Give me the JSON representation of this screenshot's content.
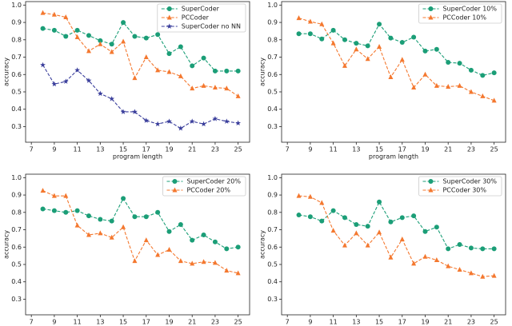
{
  "chart_data": [
    {
      "type": "line",
      "xlabel": "program length",
      "ylabel": "accuracy",
      "x": [
        8,
        9,
        10,
        11,
        12,
        13,
        14,
        15,
        16,
        17,
        18,
        19,
        20,
        21,
        22,
        23,
        24,
        25
      ],
      "xlim": [
        6.5,
        26
      ],
      "xticks": [
        7,
        9,
        11,
        13,
        15,
        17,
        19,
        21,
        23,
        25
      ],
      "ylim": [
        0.21,
        1.02
      ],
      "yticks": [
        0.3,
        0.4,
        0.5,
        0.6,
        0.7,
        0.8,
        0.9,
        {
          "value": 1.0,
          "label": "1.0"
        }
      ],
      "legend": "upper right",
      "series": [
        {
          "name": "SuperCoder",
          "color": "#1b9e77",
          "marker": "circle",
          "values": [
            0.865,
            0.855,
            0.82,
            0.855,
            0.825,
            0.795,
            0.775,
            0.9,
            0.82,
            0.81,
            0.83,
            0.72,
            0.76,
            0.65,
            0.695,
            0.62,
            0.62,
            0.62
          ]
        },
        {
          "name": "PCCoder",
          "color": "#f4782f",
          "marker": "triangle",
          "values": [
            0.955,
            0.945,
            0.93,
            0.815,
            0.735,
            0.775,
            0.73,
            0.79,
            0.58,
            0.7,
            0.625,
            0.615,
            0.59,
            0.52,
            0.535,
            0.525,
            0.52,
            0.475
          ]
        },
        {
          "name": "SuperCoder no NN",
          "color": "#3b3f9c",
          "marker": "star",
          "values": [
            0.655,
            0.545,
            0.56,
            0.625,
            0.565,
            0.49,
            0.46,
            0.385,
            0.385,
            0.335,
            0.315,
            0.33,
            0.29,
            0.33,
            0.315,
            0.345,
            0.33,
            0.32
          ]
        }
      ]
    },
    {
      "type": "line",
      "xlabel": "program length",
      "ylabel": "accuracy",
      "x": [
        8,
        9,
        10,
        11,
        12,
        13,
        14,
        15,
        16,
        17,
        18,
        19,
        20,
        21,
        22,
        23,
        24,
        25
      ],
      "xlim": [
        6.5,
        26
      ],
      "xticks": [
        7,
        9,
        11,
        13,
        15,
        17,
        19,
        21,
        23,
        25
      ],
      "ylim": [
        0.21,
        1.02
      ],
      "yticks": [
        0.3,
        0.4,
        0.5,
        0.6,
        0.7,
        0.8,
        0.9,
        {
          "value": 1.0,
          "label": "1.0"
        }
      ],
      "legend": "upper right",
      "series": [
        {
          "name": "SuperCoder 10%",
          "color": "#1b9e77",
          "marker": "circle",
          "values": [
            0.835,
            0.835,
            0.805,
            0.855,
            0.8,
            0.78,
            0.765,
            0.89,
            0.81,
            0.785,
            0.815,
            0.735,
            0.745,
            0.67,
            0.665,
            0.625,
            0.595,
            0.61
          ]
        },
        {
          "name": "PCCoder 10%",
          "color": "#f4782f",
          "marker": "triangle",
          "values": [
            0.925,
            0.905,
            0.89,
            0.78,
            0.65,
            0.745,
            0.69,
            0.76,
            0.585,
            0.685,
            0.525,
            0.6,
            0.535,
            0.53,
            0.535,
            0.5,
            0.475,
            0.45
          ]
        }
      ]
    },
    {
      "type": "line",
      "xlabel": "program length",
      "ylabel": "accuracy",
      "x": [
        8,
        9,
        10,
        11,
        12,
        13,
        14,
        15,
        16,
        17,
        18,
        19,
        20,
        21,
        22,
        23,
        24,
        25
      ],
      "xlim": [
        6.5,
        26
      ],
      "xticks": [
        7,
        9,
        11,
        13,
        15,
        17,
        19,
        21,
        23,
        25
      ],
      "ylim": [
        0.21,
        1.02
      ],
      "yticks": [
        0.3,
        0.4,
        0.5,
        0.6,
        0.7,
        0.8,
        0.9,
        {
          "value": 1.0,
          "label": "1.0"
        }
      ],
      "legend": "upper right",
      "series": [
        {
          "name": "SuperCoder 20%",
          "color": "#1b9e77",
          "marker": "circle",
          "values": [
            0.82,
            0.81,
            0.8,
            0.81,
            0.78,
            0.76,
            0.75,
            0.88,
            0.775,
            0.775,
            0.8,
            0.69,
            0.73,
            0.64,
            0.67,
            0.63,
            0.59,
            0.6
          ]
        },
        {
          "name": "PCCoder 20%",
          "color": "#f4782f",
          "marker": "triangle",
          "values": [
            0.925,
            0.895,
            0.895,
            0.725,
            0.67,
            0.68,
            0.655,
            0.715,
            0.52,
            0.64,
            0.555,
            0.585,
            0.52,
            0.505,
            0.515,
            0.51,
            0.465,
            0.45
          ]
        }
      ]
    },
    {
      "type": "line",
      "xlabel": "program length",
      "ylabel": "accuracy",
      "x": [
        8,
        9,
        10,
        11,
        12,
        13,
        14,
        15,
        16,
        17,
        18,
        19,
        20,
        21,
        22,
        23,
        24,
        25
      ],
      "xlim": [
        6.5,
        26
      ],
      "xticks": [
        7,
        9,
        11,
        13,
        15,
        17,
        19,
        21,
        23,
        25
      ],
      "ylim": [
        0.21,
        1.02
      ],
      "yticks": [
        0.3,
        0.4,
        0.5,
        0.6,
        0.7,
        0.8,
        0.9,
        {
          "value": 1.0,
          "label": "1.0"
        }
      ],
      "legend": "upper right",
      "series": [
        {
          "name": "SuperCoder 30%",
          "color": "#1b9e77",
          "marker": "circle",
          "values": [
            0.785,
            0.775,
            0.75,
            0.81,
            0.77,
            0.73,
            0.72,
            0.86,
            0.745,
            0.77,
            0.78,
            0.69,
            0.715,
            0.59,
            0.615,
            0.595,
            0.59,
            0.59
          ]
        },
        {
          "name": "PCCoder 30%",
          "color": "#f4782f",
          "marker": "triangle",
          "values": [
            0.895,
            0.89,
            0.855,
            0.695,
            0.61,
            0.68,
            0.61,
            0.685,
            0.54,
            0.645,
            0.505,
            0.545,
            0.525,
            0.49,
            0.47,
            0.45,
            0.43,
            0.435
          ]
        }
      ]
    }
  ]
}
